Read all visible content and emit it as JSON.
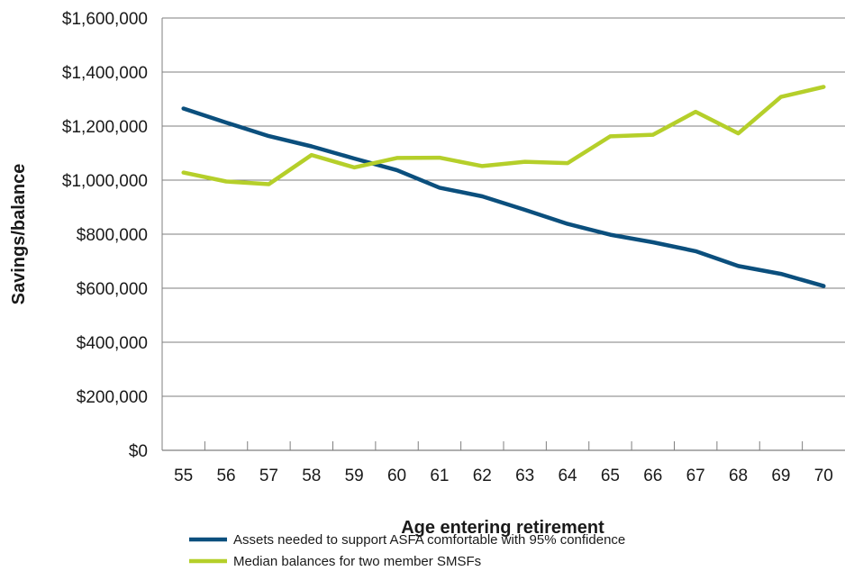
{
  "chart_data": {
    "type": "line",
    "xlabel": "Age entering retirement",
    "ylabel": "Savings/balance",
    "x": [
      55,
      56,
      57,
      58,
      59,
      60,
      61,
      62,
      63,
      64,
      65,
      66,
      67,
      68,
      69,
      70
    ],
    "ylim": [
      0,
      1600000
    ],
    "yticks": [
      0,
      200000,
      400000,
      600000,
      800000,
      1000000,
      1200000,
      1400000,
      1600000
    ],
    "ytick_labels": [
      "$0",
      "$200,000",
      "$400,000",
      "$600,000",
      "$800,000",
      "$1,000,000",
      "$1,200,000",
      "$1,400,000",
      "$1,600,000"
    ],
    "grid": "horizontal",
    "legend_position": "bottom",
    "series": [
      {
        "name": "Assets needed to support ASFA comfortable with 95% confidence",
        "color": "#0b4f7d",
        "values": [
          1265000,
          1213000,
          1163000,
          1125000,
          1080000,
          1037000,
          972000,
          940000,
          890000,
          838000,
          798000,
          770000,
          737000,
          682000,
          653000,
          608000
        ]
      },
      {
        "name": "Median balances for two member SMSFs",
        "color": "#b5cf2a",
        "values": [
          1028000,
          995000,
          985000,
          1093000,
          1047000,
          1082000,
          1083000,
          1052000,
          1068000,
          1063000,
          1162000,
          1168000,
          1253000,
          1173000,
          1308000,
          1345000
        ]
      }
    ]
  }
}
